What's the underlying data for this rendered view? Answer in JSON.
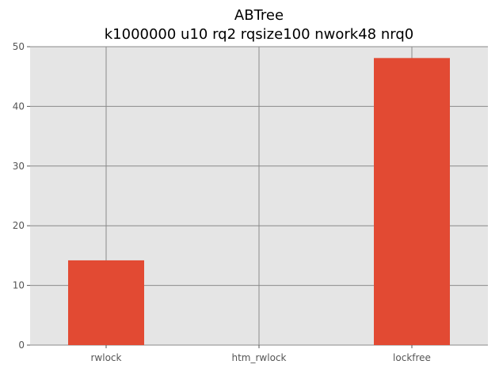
{
  "chart_data": {
    "type": "bar",
    "title": "ABTree",
    "subtitle": "k1000000 u10 rq2 rqsize100 nwork48 nrq0",
    "xlabel": "",
    "ylabel": "",
    "categories": [
      "rwlock",
      "htm_rwlock",
      "lockfree"
    ],
    "values": [
      14.2,
      0,
      48.1
    ],
    "ylim": [
      0,
      50
    ],
    "yticks": [
      0,
      10,
      20,
      30,
      40,
      50
    ],
    "grid": true,
    "bar_color": "#E24A33",
    "background_color": "#E5E5E5"
  }
}
